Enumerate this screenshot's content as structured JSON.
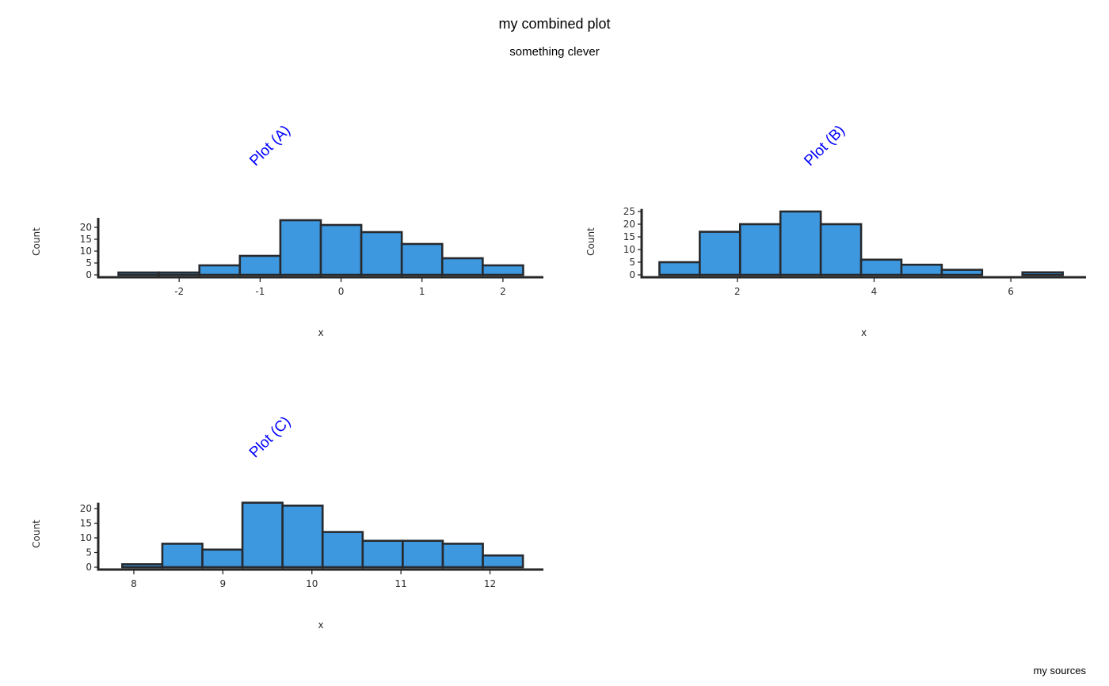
{
  "title": "my combined plot",
  "subtitle": "something clever",
  "caption": "my sources",
  "colors": {
    "bar_fill": "#3e98e0",
    "bar_outline": "#262a2e",
    "panel_title": "#0000ff",
    "axis": "#262626"
  },
  "chart_data": [
    {
      "type": "bar",
      "title": "Plot (A)",
      "xlabel": "x",
      "ylabel": "Count",
      "grid": false,
      "xlim": [
        -3.0,
        2.5
      ],
      "ylim": [
        0,
        24
      ],
      "xticks": [
        -2,
        -1,
        0,
        1,
        2
      ],
      "xtick_labels": [
        "-2",
        "-1",
        "0",
        "1",
        "2"
      ],
      "yticks": [
        0,
        5,
        10,
        15,
        20
      ],
      "ytick_labels": [
        "0",
        "5",
        "10",
        "15",
        "20"
      ],
      "bins": [
        {
          "x0": -2.75,
          "x1": -2.25,
          "count": 1
        },
        {
          "x0": -2.25,
          "x1": -1.75,
          "count": 1
        },
        {
          "x0": -1.75,
          "x1": -1.25,
          "count": 4
        },
        {
          "x0": -1.25,
          "x1": -0.75,
          "count": 8
        },
        {
          "x0": -0.75,
          "x1": -0.25,
          "count": 23
        },
        {
          "x0": -0.25,
          "x1": 0.25,
          "count": 21
        },
        {
          "x0": 0.25,
          "x1": 0.75,
          "count": 18
        },
        {
          "x0": 0.75,
          "x1": 1.25,
          "count": 13
        },
        {
          "x0": 1.25,
          "x1": 1.75,
          "count": 7
        },
        {
          "x0": 1.75,
          "x1": 2.25,
          "count": 4
        }
      ]
    },
    {
      "type": "bar",
      "title": "Plot (B)",
      "xlabel": "x",
      "ylabel": "Count",
      "grid": false,
      "xlim": [
        0.6,
        7.1
      ],
      "ylim": [
        0,
        26
      ],
      "xticks": [
        2,
        4,
        6
      ],
      "xtick_labels": [
        "2",
        "4",
        "6"
      ],
      "yticks": [
        0,
        5,
        10,
        15,
        20,
        25
      ],
      "ytick_labels": [
        "0",
        "5",
        "10",
        "15",
        "20",
        "25"
      ],
      "bins": [
        {
          "x0": 0.86,
          "x1": 1.45,
          "count": 5
        },
        {
          "x0": 1.45,
          "x1": 2.04,
          "count": 17
        },
        {
          "x0": 2.04,
          "x1": 2.63,
          "count": 20
        },
        {
          "x0": 2.63,
          "x1": 3.22,
          "count": 25
        },
        {
          "x0": 3.22,
          "x1": 3.81,
          "count": 20
        },
        {
          "x0": 3.81,
          "x1": 4.4,
          "count": 6
        },
        {
          "x0": 4.4,
          "x1": 4.99,
          "count": 4
        },
        {
          "x0": 4.99,
          "x1": 5.58,
          "count": 2
        },
        {
          "x0": 5.58,
          "x1": 6.17,
          "count": 0
        },
        {
          "x0": 6.17,
          "x1": 6.76,
          "count": 1
        }
      ]
    },
    {
      "type": "bar",
      "title": "Plot (C)",
      "xlabel": "x",
      "ylabel": "Count",
      "grid": false,
      "xlim": [
        7.6,
        12.6
      ],
      "ylim": [
        0,
        22
      ],
      "xticks": [
        8,
        9,
        10,
        11,
        12
      ],
      "xtick_labels": [
        "8",
        "9",
        "10",
        "11",
        "12"
      ],
      "yticks": [
        0,
        5,
        10,
        15,
        20
      ],
      "ytick_labels": [
        "0",
        "5",
        "10",
        "15",
        "20"
      ],
      "bins": [
        {
          "x0": 7.87,
          "x1": 8.32,
          "count": 1
        },
        {
          "x0": 8.32,
          "x1": 8.77,
          "count": 8
        },
        {
          "x0": 8.77,
          "x1": 9.22,
          "count": 6
        },
        {
          "x0": 9.22,
          "x1": 9.67,
          "count": 22
        },
        {
          "x0": 9.67,
          "x1": 10.12,
          "count": 21
        },
        {
          "x0": 10.12,
          "x1": 10.57,
          "count": 12
        },
        {
          "x0": 10.57,
          "x1": 11.02,
          "count": 9
        },
        {
          "x0": 11.02,
          "x1": 11.47,
          "count": 9
        },
        {
          "x0": 11.47,
          "x1": 11.92,
          "count": 8
        },
        {
          "x0": 11.92,
          "x1": 12.37,
          "count": 4
        }
      ]
    }
  ]
}
